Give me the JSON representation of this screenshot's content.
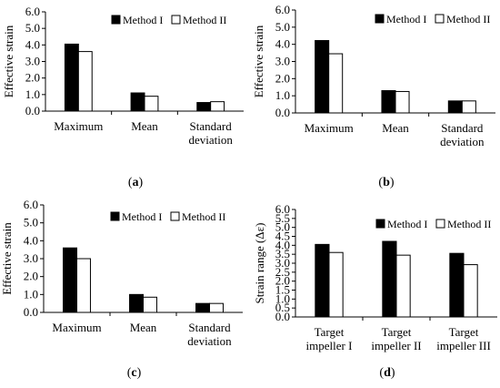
{
  "chart_data": [
    {
      "type": "bar",
      "caption": "a",
      "ylabel": "Effective strain",
      "ylim": [
        0,
        6
      ],
      "yticks": [
        "0.0",
        "1.0",
        "2.0",
        "3.0",
        "4.0",
        "5.0",
        "6.0"
      ],
      "categories": [
        [
          "Maximum"
        ],
        [
          "Mean"
        ],
        [
          "Standard",
          "deviation"
        ]
      ],
      "series": [
        {
          "name": "Method I",
          "values": [
            4.05,
            1.1,
            0.52
          ],
          "color": "#000000"
        },
        {
          "name": "Method II",
          "values": [
            3.6,
            0.9,
            0.57
          ],
          "color": "#ffffff"
        }
      ],
      "legend_position": "top-right"
    },
    {
      "type": "bar",
      "caption": "b",
      "ylabel": "Effective strain",
      "ylim": [
        0,
        6
      ],
      "yticks": [
        "0.0",
        "1.0",
        "2.0",
        "3.0",
        "4.0",
        "5.0",
        "6.0"
      ],
      "categories": [
        [
          "Maximum"
        ],
        [
          "Mean"
        ],
        [
          "Standard",
          "deviation"
        ]
      ],
      "series": [
        {
          "name": "Method I",
          "values": [
            4.22,
            1.3,
            0.7
          ],
          "color": "#000000"
        },
        {
          "name": "Method II",
          "values": [
            3.45,
            1.25,
            0.7
          ],
          "color": "#ffffff"
        }
      ],
      "legend_position": "top-right"
    },
    {
      "type": "bar",
      "caption": "c",
      "ylabel": "Effective strain",
      "ylim": [
        0,
        6
      ],
      "yticks": [
        "0.0",
        "1.0",
        "2.0",
        "3.0",
        "4.0",
        "5.0",
        "6.0"
      ],
      "categories": [
        [
          "Maximum"
        ],
        [
          "Mean"
        ],
        [
          "Standard",
          "deviation"
        ]
      ],
      "series": [
        {
          "name": "Method I",
          "values": [
            3.6,
            1.0,
            0.5
          ],
          "color": "#000000"
        },
        {
          "name": "Method II",
          "values": [
            3.0,
            0.85,
            0.5
          ],
          "color": "#ffffff"
        }
      ],
      "legend_position": "top-right"
    },
    {
      "type": "bar",
      "caption": "d",
      "ylabel": "Strain range (Δε)",
      "ylim": [
        0,
        6
      ],
      "yticks": [
        "0.0",
        "0.5",
        "1.0",
        "1.5",
        "2.0",
        "2.5",
        "3.0",
        "3.5",
        "4.0",
        "4.5",
        "5.0",
        "5.5",
        "6.0"
      ],
      "categories": [
        [
          "Target",
          "impeller I"
        ],
        [
          "Target",
          "impeller II"
        ],
        [
          "Target",
          "impeller III"
        ]
      ],
      "series": [
        {
          "name": "Method I",
          "values": [
            4.05,
            4.22,
            3.55
          ],
          "color": "#000000"
        },
        {
          "name": "Method II",
          "values": [
            3.6,
            3.45,
            2.92
          ],
          "color": "#ffffff"
        }
      ],
      "legend_position": "top-right"
    }
  ]
}
